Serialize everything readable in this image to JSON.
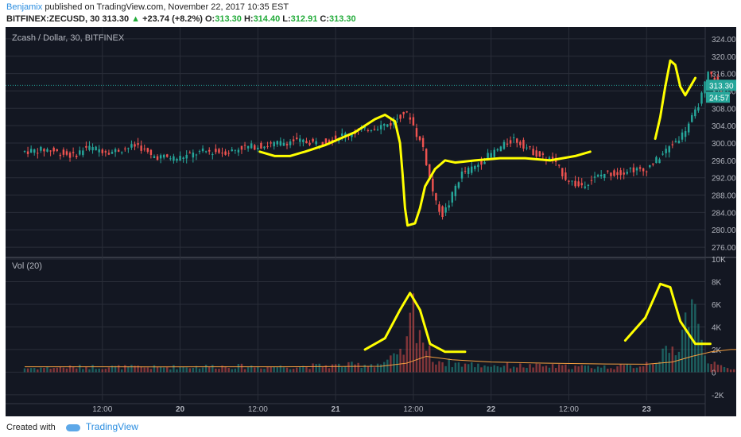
{
  "header": {
    "author": "Benjamix",
    "published": "published on TradingView.com, November 22, 2017 10:35 EST",
    "symbol": "BITFINEX:ZECUSD, 30",
    "last": "313.30",
    "change_arrow": "▲",
    "change": "+23.74 (+8.2%)",
    "o_label": "O:",
    "o_value": "313.30",
    "h_label": "H:",
    "h_value": "314.40",
    "l_label": "L:",
    "l_value": "312.91",
    "c_label": "C:",
    "c_value": "313.30"
  },
  "footer": {
    "created_with": "Created with",
    "brand": "TradingView"
  },
  "colors": {
    "background": "#131722",
    "grid": "#2a2e39",
    "text": "#b2b5be",
    "up": "#26a69a",
    "down": "#ef5350",
    "annotation": "#ffff00",
    "price_tag": "#26a69a",
    "ma": "#f5a040"
  },
  "chart_data": {
    "type": "candlestick",
    "title": "Zcash / Dollar, 30, BITFINEX",
    "price_axis": {
      "ticks": [
        "324.00",
        "320.00",
        "316.00",
        "312.00",
        "308.00",
        "304.00",
        "300.00",
        "296.00",
        "292.00",
        "288.00",
        "284.00",
        "280.00",
        "276.00"
      ],
      "ylim": [
        274,
        326
      ],
      "last_price_label": "313.30",
      "countdown_label": "24:57"
    },
    "volume_panel": {
      "label": "Vol (20)",
      "ticks": [
        "10K",
        "8K",
        "6K",
        "4K",
        "2K",
        "0",
        "-2K"
      ],
      "ylim": [
        -2500,
        10000
      ]
    },
    "time_axis": {
      "ticks": [
        "12:00",
        "20",
        "12:00",
        "21",
        "12:00",
        "22",
        "12:00",
        "23"
      ],
      "tick_hours": [
        12,
        24,
        36,
        48,
        60,
        72,
        84,
        96
      ]
    },
    "hour_range": [
      0,
      108
    ],
    "price_path": [
      [
        0,
        298
      ],
      [
        4,
        298.5
      ],
      [
        8,
        297
      ],
      [
        10,
        299
      ],
      [
        14,
        298
      ],
      [
        18,
        299.5
      ],
      [
        20,
        297
      ],
      [
        24,
        296.5
      ],
      [
        28,
        298
      ],
      [
        32,
        298
      ],
      [
        34,
        299
      ],
      [
        38,
        299.5
      ],
      [
        42,
        300.5
      ],
      [
        46,
        300
      ],
      [
        50,
        302
      ],
      [
        54,
        303.5
      ],
      [
        57,
        304.5
      ],
      [
        59,
        307
      ],
      [
        60,
        306
      ],
      [
        61,
        302
      ],
      [
        62,
        299
      ],
      [
        63,
        292
      ],
      [
        64,
        286
      ],
      [
        65,
        283.5
      ],
      [
        66,
        286
      ],
      [
        67,
        290
      ],
      [
        68,
        293
      ],
      [
        70,
        294.5
      ],
      [
        72,
        297
      ],
      [
        74,
        299
      ],
      [
        76,
        301
      ],
      [
        78,
        299
      ],
      [
        80,
        297
      ],
      [
        82,
        296
      ],
      [
        83,
        294
      ],
      [
        84,
        292
      ],
      [
        86,
        290
      ],
      [
        88,
        291.5
      ],
      [
        90,
        293
      ],
      [
        92,
        293
      ],
      [
        94,
        294
      ],
      [
        96,
        293.5
      ],
      [
        98,
        296
      ],
      [
        100,
        299
      ],
      [
        102,
        302
      ],
      [
        104,
        307
      ],
      [
        105,
        311
      ],
      [
        106,
        316
      ],
      [
        107,
        315
      ],
      [
        108,
        311
      ],
      [
        109,
        313
      ],
      [
        110,
        313.3
      ]
    ],
    "volume_path": [
      [
        0,
        380
      ],
      [
        10,
        500
      ],
      [
        20,
        450
      ],
      [
        30,
        550
      ],
      [
        40,
        500
      ],
      [
        50,
        650
      ],
      [
        55,
        800
      ],
      [
        58,
        1500
      ],
      [
        59,
        2600
      ],
      [
        60,
        6000
      ],
      [
        61,
        4200
      ],
      [
        62,
        2200
      ],
      [
        63,
        1300
      ],
      [
        65,
        900
      ],
      [
        70,
        650
      ],
      [
        75,
        600
      ],
      [
        80,
        550
      ],
      [
        85,
        500
      ],
      [
        90,
        480
      ],
      [
        95,
        600
      ],
      [
        98,
        1400
      ],
      [
        100,
        2000
      ],
      [
        101,
        3000
      ],
      [
        102,
        4800
      ],
      [
        103,
        7000
      ],
      [
        104,
        3500
      ],
      [
        105,
        1800
      ],
      [
        106,
        1200
      ],
      [
        107,
        500
      ],
      [
        110,
        200
      ]
    ],
    "ma_path": [
      [
        0,
        480
      ],
      [
        20,
        470
      ],
      [
        40,
        480
      ],
      [
        55,
        520
      ],
      [
        59,
        800
      ],
      [
        62,
        1400
      ],
      [
        66,
        1100
      ],
      [
        72,
        900
      ],
      [
        80,
        800
      ],
      [
        90,
        720
      ],
      [
        96,
        700
      ],
      [
        100,
        900
      ],
      [
        103,
        1400
      ],
      [
        106,
        1800
      ],
      [
        109,
        2000
      ],
      [
        110,
        2000
      ]
    ],
    "annotations": {
      "price_trend_1": [
        [
          47,
          298
        ],
        [
          50,
          297
        ],
        [
          53,
          297
        ],
        [
          56,
          298
        ],
        [
          60,
          299.5
        ],
        [
          63,
          301
        ],
        [
          66,
          302.5
        ],
        [
          68,
          304
        ],
        [
          70,
          305.5
        ],
        [
          72,
          306.5
        ],
        [
          74,
          305
        ],
        [
          75,
          300
        ],
        [
          75.5,
          293
        ],
        [
          76,
          285
        ],
        [
          76.5,
          281
        ],
        [
          78,
          281.5
        ],
        [
          79,
          285
        ],
        [
          80,
          290
        ],
        [
          82,
          294
        ],
        [
          84,
          296
        ],
        [
          86,
          295.5
        ],
        [
          90,
          296
        ],
        [
          95,
          296.5
        ],
        [
          100,
          296.5
        ],
        [
          105,
          296
        ],
        [
          110,
          297
        ],
        [
          113,
          298
        ]
      ],
      "price_spike_2": [
        [
          126,
          301
        ],
        [
          127,
          306
        ],
        [
          128,
          313
        ],
        [
          129,
          319
        ],
        [
          130,
          318
        ],
        [
          131,
          313
        ],
        [
          132,
          311
        ],
        [
          133,
          313
        ],
        [
          134,
          315
        ]
      ],
      "volume_bump_1": [
        [
          68,
          2000
        ],
        [
          72,
          3000
        ],
        [
          75,
          5500
        ],
        [
          77,
          7000
        ],
        [
          79,
          5500
        ],
        [
          81,
          2500
        ],
        [
          84,
          1800
        ],
        [
          88,
          1800
        ]
      ],
      "volume_bump_2": [
        [
          120,
          2800
        ],
        [
          124,
          4800
        ],
        [
          127,
          7800
        ],
        [
          129,
          7500
        ],
        [
          131,
          4500
        ],
        [
          134,
          2500
        ],
        [
          137,
          2500
        ]
      ]
    }
  }
}
